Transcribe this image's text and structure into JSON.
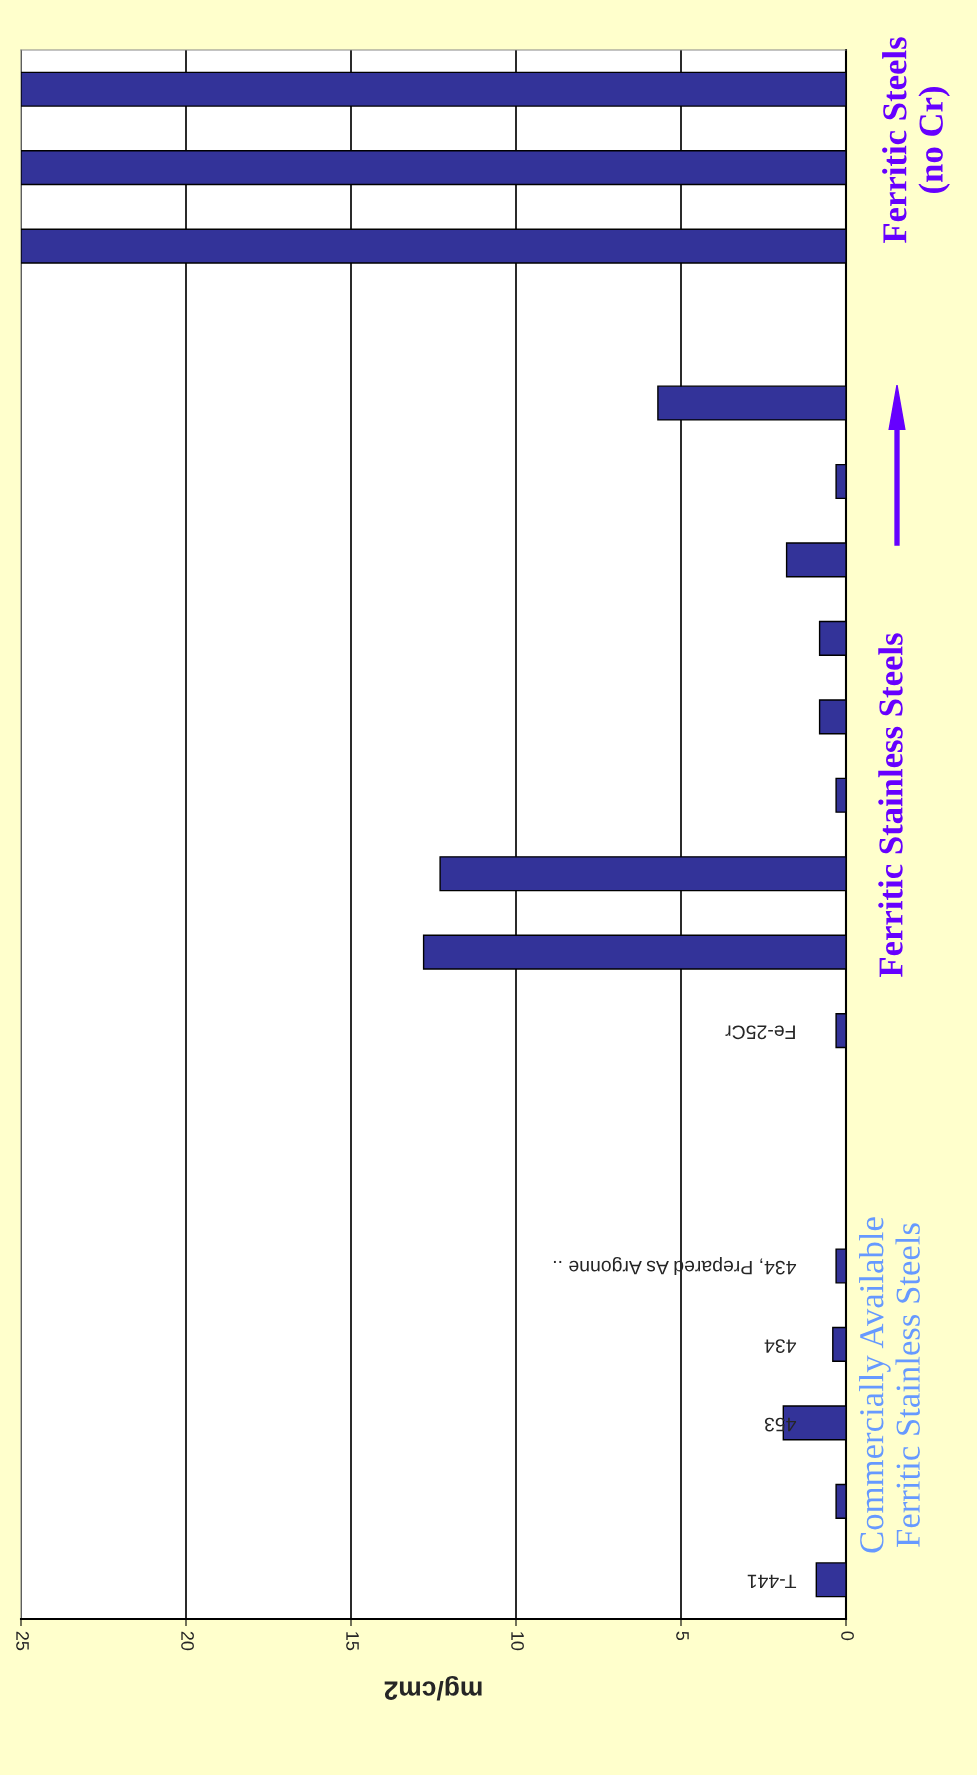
{
  "chart_data": {
    "type": "bar",
    "orientation": "horizontal",
    "xlabel": "mg/cm2",
    "categories": [
      null,
      null,
      null,
      null,
      null,
      null,
      null,
      null,
      null,
      null,
      null,
      null,
      "Fe-25Cr",
      null,
      null,
      "434, Prepared As Argonne ..",
      "434",
      "453",
      null,
      "T-441"
    ],
    "values": [
      25,
      25,
      25,
      null,
      5.7,
      0.3,
      1.8,
      0.8,
      0.8,
      0.3,
      12.3,
      12.8,
      0.3,
      null,
      null,
      0.3,
      0.4,
      1.9,
      0.3,
      0.9
    ],
    "color": "#333399",
    "xlim": [
      25,
      0
    ],
    "xticks": [
      0,
      5,
      10,
      15,
      20,
      25
    ],
    "grid": "x",
    "legend": false,
    "annotations": [
      "Commercially Available\nFerritic Stainless Steels",
      "Ferritic Stainless Steels",
      "Ferritic Steels\n(no Cr)"
    ]
  }
}
